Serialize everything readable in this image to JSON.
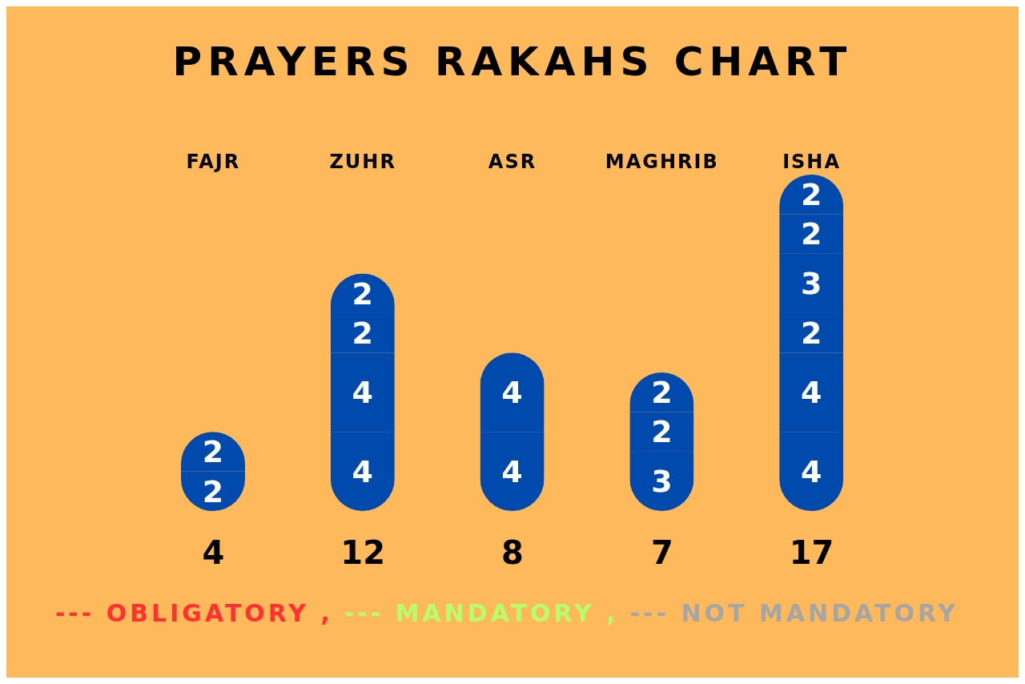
{
  "chart_data": {
    "type": "bar",
    "stacked": true,
    "title": "PRAYERS RAKAHS CHART",
    "categories": [
      "FAJR",
      "ZUHR",
      "ASR",
      "MAGHRIB",
      "ISHA"
    ],
    "data_labels": true,
    "totals": [
      "4",
      "12",
      "8",
      "7",
      "17"
    ],
    "series": [
      {
        "color": "#004aad",
        "values": [
          2,
          4,
          4,
          3,
          4
        ]
      },
      {
        "color": "#004aad",
        "values": [
          2,
          4,
          4,
          2,
          4
        ]
      },
      {
        "color": "#004aad",
        "values": [
          null,
          2,
          null,
          2,
          2
        ]
      },
      {
        "color": "#004aad",
        "values": [
          null,
          2,
          null,
          null,
          3
        ]
      },
      {
        "color": "#004aad",
        "values": [
          null,
          null,
          null,
          null,
          2
        ]
      },
      {
        "color": "#004aad",
        "values": [
          null,
          null,
          null,
          null,
          2
        ]
      }
    ],
    "annotations": [
      "--- OBLIGATORY ,",
      "--- MANDATORY ,",
      "--- NOT MANDATORY"
    ]
  }
}
